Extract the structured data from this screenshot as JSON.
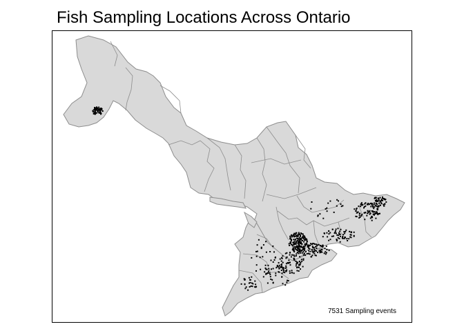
{
  "title": "Fish Sampling Locations Across Ontario",
  "annotation": "7531 Sampling events",
  "colors": {
    "land_fill": "#d9d9d9",
    "boundary": "#8c8c8c",
    "point": "#000000",
    "frame": "#000000",
    "background": "#ffffff"
  },
  "layers": [
    "ontario-watershed-boundaries",
    "sampling-event-points"
  ]
}
